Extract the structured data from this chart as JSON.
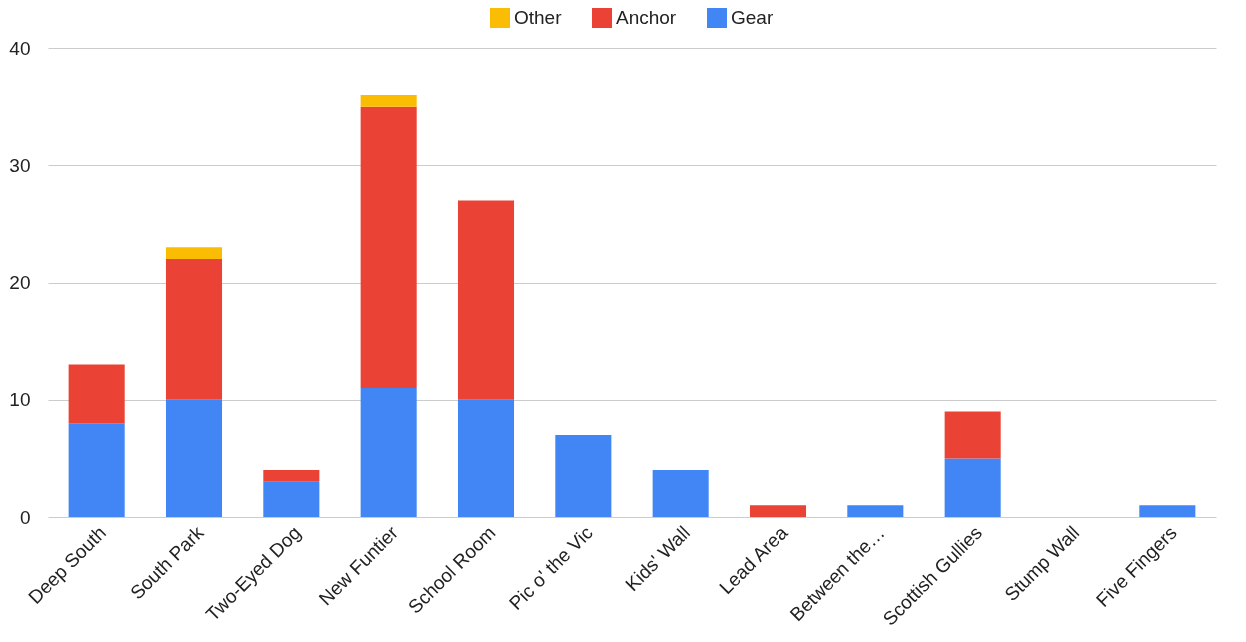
{
  "chart_data": {
    "type": "bar",
    "stacked": true,
    "categories": [
      "Deep South",
      "South Park",
      "Two-Eyed Dog",
      "New Funtier",
      "School Room",
      "Pic o' the Vic",
      "Kids' Wall",
      "Lead Area",
      "Between the…",
      "Scottish Gullies",
      "Stump Wall",
      "Five Fingers"
    ],
    "series": [
      {
        "name": "Gear",
        "color": "#4285f4",
        "values": [
          8,
          10,
          3,
          11,
          10,
          7,
          4,
          0,
          1,
          5,
          0,
          1
        ]
      },
      {
        "name": "Anchor",
        "color": "#ea4335",
        "values": [
          5,
          12,
          1,
          24,
          17,
          0,
          0,
          1,
          0,
          4,
          0,
          0
        ]
      },
      {
        "name": "Other",
        "color": "#fbbc04",
        "values": [
          0,
          1,
          0,
          1,
          0,
          0,
          0,
          0,
          0,
          0,
          0,
          0
        ]
      }
    ],
    "ylim": [
      0,
      40
    ],
    "yticks": [
      0,
      10,
      20,
      30,
      40
    ],
    "grid": "y",
    "legend": "top"
  }
}
